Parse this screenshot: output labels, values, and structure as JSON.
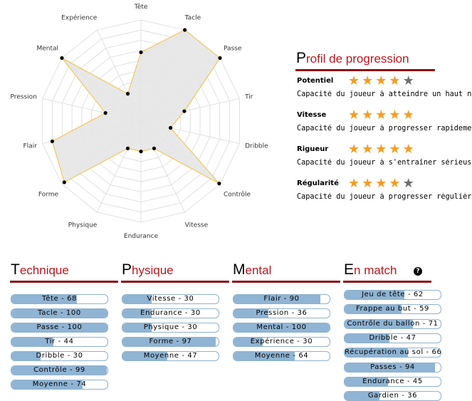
{
  "radar": {
    "max": 100,
    "axes": [
      "Tête",
      "Tacle",
      "Passe",
      "Tir",
      "Dribble",
      "Contrôle",
      "Vitesse",
      "Endurance",
      "Physique",
      "Forme",
      "Flair",
      "Pression",
      "Mental",
      "Expérience"
    ],
    "values": [
      68,
      100,
      100,
      44,
      30,
      99,
      30,
      30,
      30,
      97,
      90,
      36,
      100,
      30
    ],
    "colors": {
      "fill": "#e6e6e6",
      "stroke": "#f2c75e",
      "grid": "#d9d9d9",
      "point": "#000000"
    }
  },
  "profile": {
    "title_first": "P",
    "title_rest": "rofil de progression",
    "traits": [
      {
        "name": "Potentiel",
        "stars": 4,
        "max_stars": 5,
        "desc": "Capacité du joueur à atteindre un haut niveau"
      },
      {
        "name": "Vitesse",
        "stars": 5,
        "max_stars": 5,
        "desc": "Capacité du joueur à progresser rapidement"
      },
      {
        "name": "Rigueur",
        "stars": 5,
        "max_stars": 5,
        "desc": "Capacité du joueur à s'entraîner sérieusement"
      },
      {
        "name": "Régularité",
        "stars": 4,
        "max_stars": 5,
        "desc": "Capacité du joueur à progresser régulièrement"
      }
    ]
  },
  "sections": [
    {
      "first": "T",
      "rest": "echnique",
      "stats": [
        {
          "label": "Tête - 68",
          "value": 68
        },
        {
          "label": "Tacle - 100",
          "value": 100
        },
        {
          "label": "Passe - 100",
          "value": 100
        },
        {
          "label": "Tir - 44",
          "value": 44
        },
        {
          "label": "Dribble - 30",
          "value": 30
        },
        {
          "label": "Contrôle - 99",
          "value": 99
        },
        {
          "label": "Moyenne - 74",
          "value": 74
        }
      ]
    },
    {
      "first": "P",
      "rest": "hysique",
      "stats": [
        {
          "label": "Vitesse - 30",
          "value": 30
        },
        {
          "label": "Endurance - 30",
          "value": 30
        },
        {
          "label": "Physique - 30",
          "value": 30
        },
        {
          "label": "Forme - 97",
          "value": 97
        },
        {
          "label": "Moyenne - 47",
          "value": 47
        }
      ]
    },
    {
      "first": "M",
      "rest": "ental",
      "stats": [
        {
          "label": "Flair - 90",
          "value": 90
        },
        {
          "label": "Pression - 36",
          "value": 36
        },
        {
          "label": "Mental - 100",
          "value": 100
        },
        {
          "label": "Expérience - 30",
          "value": 30
        },
        {
          "label": "Moyenne - 64",
          "value": 64
        }
      ]
    },
    {
      "first": "E",
      "rest": "n match",
      "help_icon": "question-icon",
      "help_glyph": "?",
      "stats": [
        {
          "label": "Jeu de tête - 62",
          "value": 62
        },
        {
          "label": "Frappe au but - 59",
          "value": 59
        },
        {
          "label": "Contrôle du ballon - 71",
          "value": 71
        },
        {
          "label": "Dribble - 47",
          "value": 47
        },
        {
          "label": "Récupération au sol - 66",
          "value": 66
        },
        {
          "label": "Passes - 94",
          "value": 94
        },
        {
          "label": "Endurance - 45",
          "value": 45
        },
        {
          "label": "Gardien - 36",
          "value": 36
        }
      ]
    }
  ]
}
